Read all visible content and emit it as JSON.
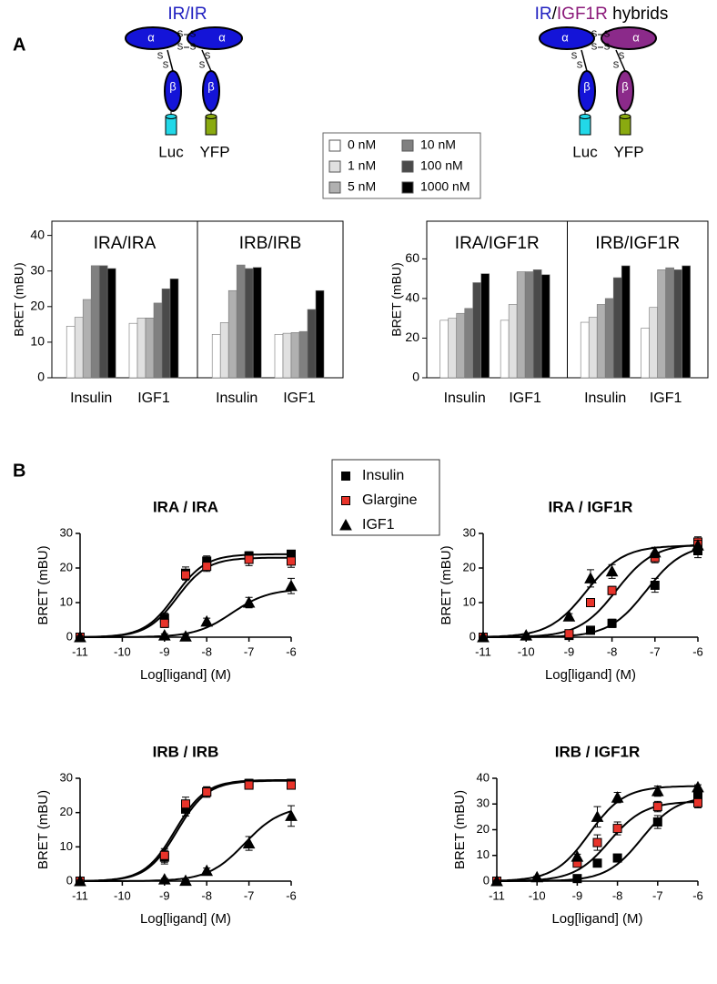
{
  "panel_labels": [
    "A",
    "B"
  ],
  "diagrams": [
    {
      "title": [
        {
          "text": "IR",
          "color": "#2020c0"
        },
        {
          "text": "/",
          "color": "#2020c0"
        },
        {
          "text": "IR",
          "color": "#2020c0"
        }
      ],
      "alpha": "α",
      "beta": "β",
      "s": "S",
      "luc": "Luc",
      "yfp": "YFP"
    },
    {
      "title": [
        {
          "text": "IR",
          "color": "#2020c0"
        },
        {
          "text": "/",
          "color": "#000000"
        },
        {
          "text": "IGF1R",
          "color": "#8b1a7a"
        },
        {
          "text": " hybrids",
          "color": "#000000"
        }
      ],
      "alpha": "α",
      "beta": "β",
      "s": "S",
      "luc": "Luc",
      "yfp": "YFP"
    }
  ],
  "chart_data": [
    {
      "type": "bar",
      "facets": [
        "IRA/IRA",
        "IRB/IRB"
      ],
      "categories": [
        "Insulin",
        "IGF1",
        "Insulin",
        "IGF1"
      ],
      "ylabel": "BRET (mBU)",
      "ylim": [
        0,
        44
      ],
      "yticks": [
        0,
        10,
        20,
        30,
        40
      ],
      "series": [
        {
          "name": "0 nM",
          "color": "#ffffff",
          "values": [
            14.5,
            15.3,
            12.2,
            12.2
          ]
        },
        {
          "name": "1 nM",
          "color": "#e0e0e0",
          "values": [
            17,
            16.8,
            15.5,
            12.5
          ]
        },
        {
          "name": "5 nM",
          "color": "#b0b0b0",
          "values": [
            22,
            16.8,
            24.5,
            12.7
          ]
        },
        {
          "name": "10 nM",
          "color": "#808080",
          "values": [
            31.5,
            21,
            31.7,
            13
          ]
        },
        {
          "name": "100 nM",
          "color": "#4a4a4a",
          "values": [
            31.5,
            25,
            30.7,
            19.2
          ]
        },
        {
          "name": "1000 nM",
          "color": "#000000",
          "values": [
            30.7,
            27.8,
            31,
            24.5
          ]
        }
      ]
    },
    {
      "type": "bar",
      "facets": [
        "IRA/IGF1R",
        "IRB/IGF1R"
      ],
      "categories": [
        "Insulin",
        "IGF1",
        "Insulin",
        "IGF1"
      ],
      "ylabel": "BRET (mBU)",
      "ylim": [
        0,
        79
      ],
      "yticks": [
        0,
        20,
        40,
        60
      ],
      "series": [
        {
          "color": "#ffffff",
          "values": [
            29,
            29,
            28,
            25
          ]
        },
        {
          "color": "#e0e0e0",
          "values": [
            30,
            37,
            30.5,
            35.5
          ]
        },
        {
          "color": "#b0b0b0",
          "values": [
            32.5,
            53.5,
            37,
            54.5
          ]
        },
        {
          "color": "#808080",
          "values": [
            35,
            53.5,
            40,
            55.5
          ]
        },
        {
          "color": "#4a4a4a",
          "values": [
            48,
            54.5,
            50.5,
            54.5
          ]
        },
        {
          "color": "#000000",
          "values": [
            52.5,
            52,
            56.5,
            56.5
          ]
        }
      ]
    },
    {
      "type": "scatter",
      "title": "IRA / IRA",
      "xlabel": "Log[ligand] (M)",
      "ylabel": "BRET (mBU)",
      "xlim": [
        -11,
        -6
      ],
      "xticks": [
        -11,
        -10,
        -9,
        -8,
        -7,
        -6
      ],
      "ylim": [
        0,
        30
      ],
      "yticks": [
        0,
        10,
        20,
        30
      ],
      "x": [
        -11,
        -10,
        -9,
        -8.5,
        -8,
        -7,
        -6
      ],
      "series": [
        {
          "name": "Insulin",
          "color": "#000000",
          "marker": "square",
          "values": [
            0,
            null,
            5.5,
            18.5,
            22,
            23.5,
            24
          ],
          "errors": [
            0.3,
            null,
            1.5,
            1.8,
            1.5,
            1.2,
            1
          ],
          "fit": {
            "bottom": 0,
            "top": 24,
            "log_ec50": -8.75,
            "hill": 1.2
          }
        },
        {
          "name": "Glargine",
          "color": "#e8332a",
          "marker": "square",
          "values": [
            0,
            null,
            4,
            18,
            20.5,
            22.5,
            22
          ],
          "errors": [
            0.3,
            null,
            1.2,
            1.5,
            1.5,
            1.8,
            1.8
          ],
          "fit": {
            "bottom": 0,
            "top": 23,
            "log_ec50": -8.7,
            "hill": 1.2
          }
        },
        {
          "name": "IGF1",
          "color": "#000000",
          "marker": "triangle",
          "values": [
            0,
            null,
            0.5,
            0.2,
            4.5,
            10,
            14.8
          ],
          "errors": [
            0.3,
            null,
            0.5,
            0.5,
            1,
            1.5,
            2.2
          ],
          "fit": {
            "bottom": 0,
            "top": 14,
            "log_ec50": -7.4,
            "hill": 1
          }
        }
      ]
    },
    {
      "type": "scatter",
      "title": "IRA / IGF1R",
      "xlabel": "Log[ligand] (M)",
      "ylabel": "BRET (mBU)",
      "xlim": [
        -11,
        -6
      ],
      "xticks": [
        -11,
        -10,
        -9,
        -8,
        -7,
        -6
      ],
      "ylim": [
        0,
        30
      ],
      "yticks": [
        0,
        10,
        20,
        30
      ],
      "x": [
        -11,
        -10,
        -9,
        -8.5,
        -8,
        -7,
        -6
      ],
      "series": [
        {
          "color": "#000000",
          "marker": "square",
          "values": [
            0,
            null,
            0.5,
            2,
            4,
            15,
            25
          ],
          "errors": [
            0.3,
            null,
            0.5,
            0.8,
            1.2,
            2,
            2
          ],
          "fit": {
            "bottom": 0,
            "top": 27,
            "log_ec50": -7.2,
            "hill": 1
          }
        },
        {
          "color": "#e8332a",
          "marker": "square",
          "values": [
            0,
            null,
            1,
            10,
            13.5,
            23,
            27.5
          ],
          "errors": [
            0.3,
            null,
            0.5,
            1,
            1.2,
            1.5,
            1.5
          ],
          "fit": {
            "bottom": 0,
            "top": 27,
            "log_ec50": -7.9,
            "hill": 1
          }
        },
        {
          "color": "#000000",
          "marker": "triangle",
          "values": [
            0,
            0.5,
            6,
            17,
            19,
            24.5,
            26.5
          ],
          "errors": [
            0.3,
            0.3,
            0.8,
            2.5,
            2,
            1.5,
            1.5
          ],
          "fit": {
            "bottom": 0,
            "top": 26.5,
            "log_ec50": -8.6,
            "hill": 1
          }
        }
      ]
    },
    {
      "type": "scatter",
      "title": "IRB / IRB",
      "xlabel": "Log[ligand] (M)",
      "ylabel": "BRET (mBU)",
      "xlim": [
        -11,
        -6
      ],
      "xticks": [
        -11,
        -10,
        -9,
        -8,
        -7,
        -6
      ],
      "ylim": [
        0,
        30
      ],
      "yticks": [
        0,
        10,
        20,
        30
      ],
      "x": [
        -11,
        -10,
        -9,
        -8.5,
        -8,
        -7,
        -6
      ],
      "series": [
        {
          "color": "#000000",
          "marker": "square",
          "values": [
            0,
            null,
            7,
            21,
            26,
            28.5,
            28.5
          ],
          "errors": [
            0.3,
            null,
            2,
            2,
            1.5,
            1.2,
            1.2
          ],
          "fit": {
            "bottom": 0,
            "top": 29.5,
            "log_ec50": -8.75,
            "hill": 1.2
          }
        },
        {
          "color": "#e8332a",
          "marker": "square",
          "values": [
            0,
            null,
            7.5,
            22.5,
            26,
            28,
            28
          ],
          "errors": [
            0.3,
            null,
            2,
            2,
            1.5,
            1.2,
            1.2
          ],
          "fit": {
            "bottom": 0,
            "top": 29.3,
            "log_ec50": -8.7,
            "hill": 1.2
          }
        },
        {
          "color": "#000000",
          "marker": "triangle",
          "values": [
            0,
            null,
            0.5,
            0.1,
            3,
            11,
            19
          ],
          "errors": [
            0.3,
            null,
            0.3,
            0.3,
            0.8,
            2,
            3
          ],
          "fit": {
            "bottom": 0,
            "top": 22,
            "log_ec50": -7.1,
            "hill": 1
          }
        }
      ]
    },
    {
      "type": "scatter",
      "title": "IRB / IGF1R",
      "xlabel": "Log[ligand] (M)",
      "ylabel": "BRET (mBU)",
      "xlim": [
        -11,
        -6
      ],
      "xticks": [
        -11,
        -10,
        -9,
        -8,
        -7,
        -6
      ],
      "ylim": [
        0,
        40
      ],
      "yticks": [
        0,
        10,
        20,
        30,
        40
      ],
      "x": [
        -11,
        -10,
        -9,
        -8.5,
        -8,
        -7,
        -6
      ],
      "series": [
        {
          "color": "#000000",
          "marker": "square",
          "values": [
            0,
            null,
            1,
            7,
            9,
            23,
            33
          ],
          "errors": [
            0.3,
            null,
            0.5,
            1,
            1.5,
            2.5,
            2
          ],
          "fit": {
            "bottom": 0,
            "top": 33,
            "log_ec50": -7.4,
            "hill": 1
          }
        },
        {
          "color": "#e8332a",
          "marker": "square",
          "values": [
            0,
            null,
            7,
            15,
            20.5,
            29,
            30.5
          ],
          "errors": [
            0.3,
            null,
            1,
            3,
            2.5,
            2,
            2
          ],
          "fit": {
            "bottom": 0,
            "top": 31,
            "log_ec50": -8.2,
            "hill": 1
          }
        },
        {
          "color": "#000000",
          "marker": "triangle",
          "values": [
            0,
            1.5,
            9.5,
            25,
            32.5,
            35,
            36.5
          ],
          "errors": [
            0.3,
            0.5,
            1,
            4,
            2,
            2,
            1
          ],
          "fit": {
            "bottom": 0,
            "top": 37,
            "log_ec50": -8.7,
            "hill": 1
          }
        }
      ]
    }
  ]
}
